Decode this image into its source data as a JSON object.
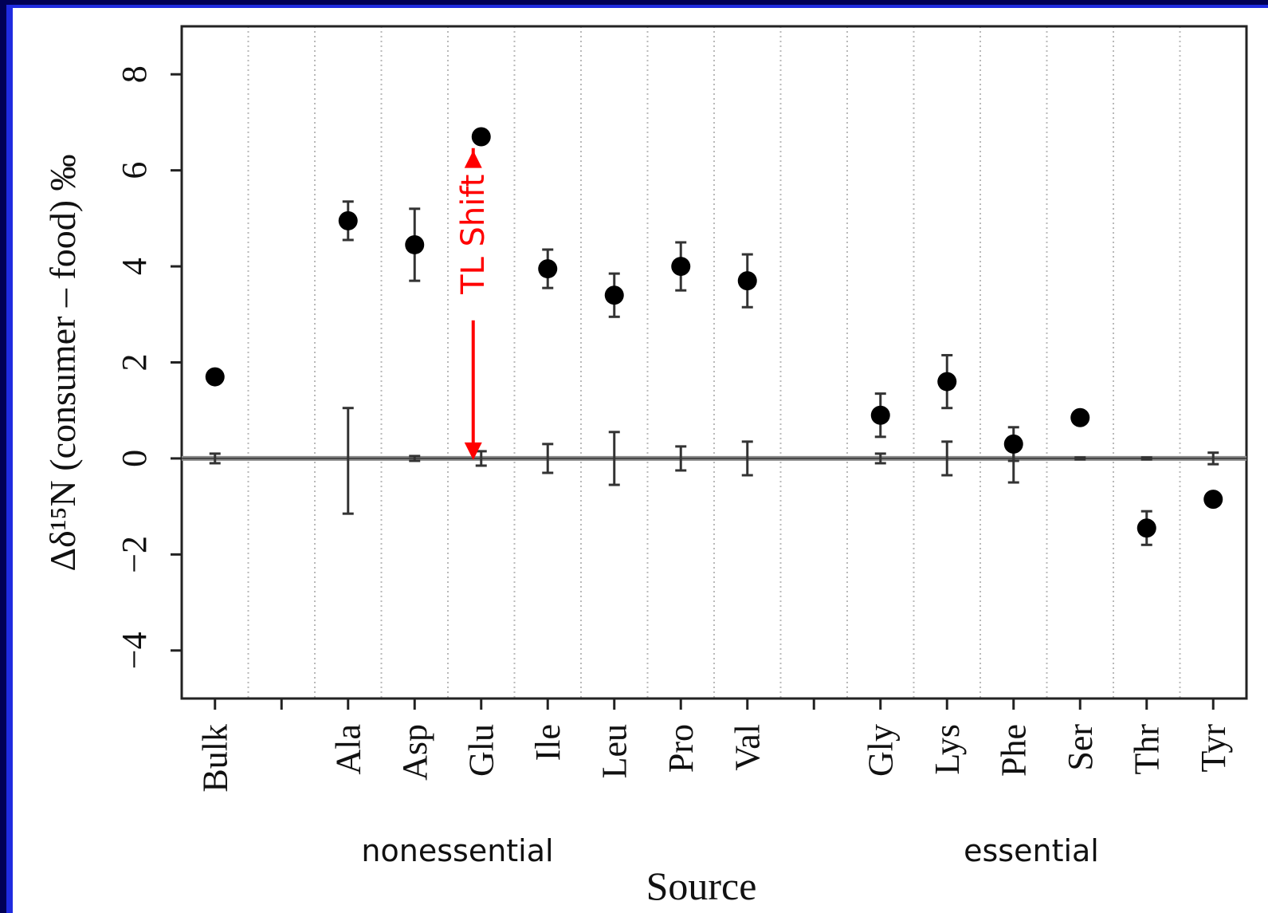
{
  "chart_data": {
    "type": "scatter",
    "ylabel": "Δδ¹⁵N (consumer – food) ‰",
    "xlabel": "Source",
    "ylim": [
      -5,
      9
    ],
    "yticks": [
      -4,
      -2,
      0,
      2,
      4,
      6,
      8
    ],
    "ytick_labels": [
      "−4",
      "−2",
      "0",
      "2",
      "4",
      "6",
      "8"
    ],
    "grid": "vertical dotted",
    "categories": [
      "Bulk",
      "",
      "Ala",
      "Asp",
      "Glu",
      "Ile",
      "Leu",
      "Pro",
      "Val",
      "",
      "Gly",
      "Lys",
      "Phe",
      "Ser",
      "Thr",
      "Tyr"
    ],
    "groups": [
      {
        "label": "nonessential",
        "members": [
          "Ala",
          "Asp",
          "Glu",
          "Ile",
          "Leu",
          "Pro",
          "Val"
        ]
      },
      {
        "label": "essential",
        "members": [
          "Gly",
          "Lys",
          "Phe",
          "Ser",
          "Thr",
          "Tyr"
        ]
      }
    ],
    "series": [
      {
        "marker": "filled-circle",
        "points": [
          {
            "x": "Bulk",
            "y": 1.7,
            "err": 0.0
          },
          {
            "x": "Ala",
            "y": 4.95,
            "err": 0.4
          },
          {
            "x": "Asp",
            "y": 4.45,
            "err": 0.75
          },
          {
            "x": "Glu",
            "y": 6.7,
            "err": 0.0
          },
          {
            "x": "Ile",
            "y": 3.95,
            "err": 0.4
          },
          {
            "x": "Leu",
            "y": 3.4,
            "err": 0.45
          },
          {
            "x": "Pro",
            "y": 4.0,
            "err": 0.5
          },
          {
            "x": "Val",
            "y": 3.7,
            "err": 0.55
          },
          {
            "x": "Gly",
            "y": 0.9,
            "err": 0.45
          },
          {
            "x": "Lys",
            "y": 1.6,
            "err": 0.55
          },
          {
            "x": "Phe",
            "y": 0.3,
            "err": 0.35
          },
          {
            "x": "Ser",
            "y": 0.85,
            "err": 0.0
          },
          {
            "x": "Thr",
            "y": -1.45,
            "err": 0.35
          },
          {
            "x": "Tyr",
            "y": -0.85,
            "err": 0.1
          }
        ]
      },
      {
        "marker": "error-bar-only",
        "points": [
          {
            "x": "Bulk",
            "y": 0.0,
            "err": 0.1
          },
          {
            "x": "Ala",
            "y": -0.05,
            "err": 1.1
          },
          {
            "x": "Asp",
            "y": 0.0,
            "err": 0.05
          },
          {
            "x": "Glu",
            "y": 0.0,
            "err": 0.15
          },
          {
            "x": "Ile",
            "y": 0.0,
            "err": 0.3
          },
          {
            "x": "Leu",
            "y": 0.0,
            "err": 0.55
          },
          {
            "x": "Pro",
            "y": 0.0,
            "err": 0.25
          },
          {
            "x": "Val",
            "y": 0.0,
            "err": 0.35
          },
          {
            "x": "Gly",
            "y": 0.0,
            "err": 0.1
          },
          {
            "x": "Lys",
            "y": 0.0,
            "err": 0.35
          },
          {
            "x": "Phe",
            "y": -0.05,
            "err": 0.45
          },
          {
            "x": "Ser",
            "y": 0.0,
            "err": 0.02
          },
          {
            "x": "Thr",
            "y": 0.0,
            "err": 0.02
          },
          {
            "x": "Tyr",
            "y": 0.0,
            "err": 0.12
          }
        ]
      }
    ],
    "annotations": [
      {
        "text": "TL Shift",
        "color": "#ff0000",
        "x": "Glu",
        "from_y": 0.0,
        "to_y": 6.35
      }
    ]
  }
}
